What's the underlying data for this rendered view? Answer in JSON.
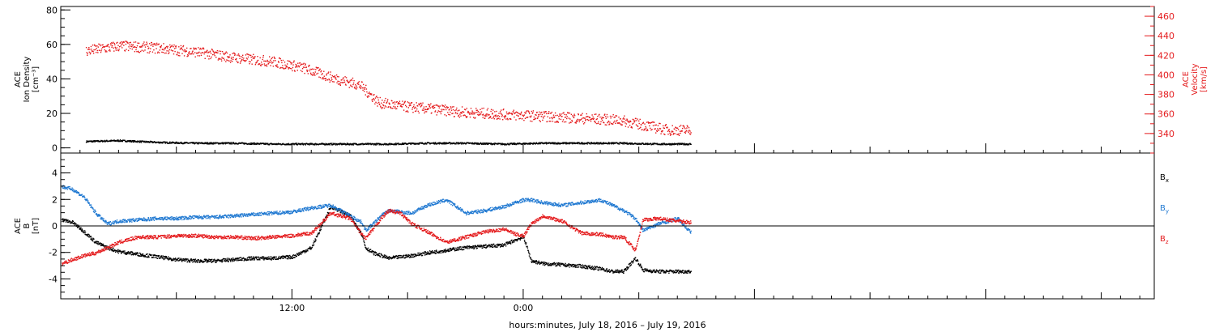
{
  "colors": {
    "frame": "#000000",
    "density": "#000000",
    "velocity": "#e41a1c",
    "bx": "#000000",
    "by": "#1f78d1",
    "bz": "#e41a1c"
  },
  "xlabel": "hours:minutes, July 18, 2016 – July 19, 2016",
  "x_ticks": [
    {
      "hour": 12,
      "label": "12:00"
    },
    {
      "hour": 24,
      "label": "0:00"
    }
  ],
  "chart_data": [
    {
      "type": "scatter",
      "panel": "top",
      "ylabel": [
        "ACE",
        "Ion Density",
        "[cm⁻³]"
      ],
      "ylim": [
        -3,
        82
      ],
      "yticks": [
        0,
        20,
        40,
        60,
        80
      ],
      "right_ylabel": [
        "ACE",
        "Velocity",
        "[km/s]"
      ],
      "right_ylim": [
        320,
        470
      ],
      "right_yticks": [
        340,
        360,
        380,
        400,
        420,
        440,
        460
      ],
      "xlim_hours": [
        0.0,
        56.75
      ],
      "grid": false,
      "series": [
        {
          "axis": "left",
          "color": "density",
          "x": [
            1.3,
            3,
            5,
            7,
            9,
            11,
            13,
            15,
            17,
            19,
            21,
            23,
            25,
            27,
            29,
            31,
            32.7
          ],
          "y": [
            4,
            4.5,
            3.5,
            3,
            3,
            2.5,
            2.5,
            2.5,
            2.5,
            3,
            3,
            2.5,
            3,
            3,
            3,
            2.5,
            2.5
          ]
        },
        {
          "axis": "right",
          "color": "velocity",
          "x": [
            1.3,
            3,
            5,
            7,
            9,
            11,
            12.5,
            14,
            15.5,
            16.5,
            17.8,
            19,
            21,
            23,
            25,
            27,
            29,
            30.5,
            31.5,
            32.7
          ],
          "y": [
            425,
            430,
            428,
            424,
            418,
            414,
            408,
            398,
            390,
            372,
            368,
            366,
            362,
            360,
            358,
            356,
            354,
            348,
            344,
            344
          ]
        }
      ]
    },
    {
      "type": "scatter",
      "panel": "bottom",
      "ylabel": [
        "ACE",
        "B",
        "[nT]"
      ],
      "ylim": [
        -5.5,
        5.5
      ],
      "yticks": [
        -4,
        -2,
        0,
        2,
        4
      ],
      "zero_line": true,
      "xlim_hours": [
        0.0,
        56.75
      ],
      "grid": false,
      "legend_position": "right",
      "legend": [
        {
          "base": "B",
          "sub": "x",
          "color": "bx"
        },
        {
          "base": "B",
          "sub": "y",
          "color": "by"
        },
        {
          "base": "B",
          "sub": "z",
          "color": "bz"
        }
      ],
      "series": [
        {
          "name": "Bx",
          "color": "bx",
          "x": [
            0.05,
            0.6,
            1.2,
            1.8,
            2.4,
            3,
            4,
            5,
            6,
            7,
            8,
            9,
            10,
            11,
            12,
            13,
            14,
            15,
            15.6,
            15.8,
            16.2,
            16.6,
            17,
            17.6,
            18.2,
            19,
            20,
            21,
            22,
            23,
            23.6,
            24,
            24.4,
            25,
            26,
            27,
            28,
            28.6,
            29.2,
            29.8,
            30.2,
            31,
            32,
            32.7
          ],
          "y": [
            0.5,
            0.3,
            -0.4,
            -1.2,
            -1.6,
            -1.9,
            -2.1,
            -2.3,
            -2.5,
            -2.6,
            -2.6,
            -2.5,
            -2.4,
            -2.4,
            -2.3,
            -1.6,
            1.5,
            0.8,
            -0.6,
            -1.6,
            -2.0,
            -2.2,
            -2.4,
            -2.3,
            -2.2,
            -2.0,
            -1.8,
            -1.6,
            -1.5,
            -1.4,
            -1.0,
            -0.8,
            -2.6,
            -2.8,
            -2.9,
            -3.0,
            -3.2,
            -3.4,
            -3.4,
            -2.4,
            -3.3,
            -3.4,
            -3.4,
            -3.4
          ]
        },
        {
          "name": "By",
          "color": "by",
          "x": [
            0.05,
            0.6,
            1.2,
            1.8,
            2.4,
            3,
            4,
            5,
            6,
            7,
            8,
            9,
            10,
            11,
            12,
            13,
            14,
            15,
            15.6,
            15.8,
            16.2,
            16.6,
            17,
            17.6,
            18.2,
            19,
            20,
            21,
            22,
            23,
            23.6,
            24,
            24.4,
            25,
            26,
            27,
            28,
            28.6,
            29.2,
            29.8,
            30.2,
            31,
            32,
            32.7
          ],
          "y": [
            3.0,
            2.8,
            2.2,
            1.0,
            0.2,
            0.4,
            0.5,
            0.6,
            0.6,
            0.7,
            0.7,
            0.8,
            0.9,
            1.0,
            1.1,
            1.4,
            1.6,
            0.8,
            0.3,
            -0.3,
            0.2,
            0.8,
            1.2,
            1.1,
            1.0,
            1.6,
            2.0,
            1.0,
            1.2,
            1.5,
            1.8,
            2.0,
            2.0,
            1.8,
            1.6,
            1.8,
            2.0,
            1.6,
            1.2,
            0.6,
            -0.3,
            0.2,
            0.6,
            -0.5
          ]
        },
        {
          "name": "Bz",
          "color": "bz",
          "x": [
            0.05,
            0.6,
            1.2,
            1.8,
            2.4,
            3,
            4,
            5,
            6,
            7,
            8,
            9,
            10,
            11,
            12,
            13,
            14,
            15,
            15.6,
            15.8,
            16.2,
            16.6,
            17,
            17.6,
            18.2,
            19,
            20,
            21,
            22,
            23,
            23.6,
            24,
            24.4,
            25,
            26,
            27,
            28,
            28.6,
            29.2,
            29.8,
            30.2,
            31,
            32,
            32.7
          ],
          "y": [
            -2.8,
            -2.5,
            -2.2,
            -2.0,
            -1.6,
            -1.2,
            -0.8,
            -0.8,
            -0.7,
            -0.7,
            -0.8,
            -0.8,
            -0.9,
            -0.8,
            -0.7,
            -0.5,
            1.0,
            0.6,
            -0.6,
            -0.9,
            -0.2,
            0.6,
            1.2,
            1.0,
            0.2,
            -0.4,
            -1.2,
            -0.8,
            -0.4,
            -0.2,
            -0.6,
            -0.7,
            0.2,
            0.8,
            0.4,
            -0.5,
            -0.6,
            -0.8,
            -0.8,
            -1.8,
            0.5,
            0.6,
            0.4,
            0.3
          ]
        }
      ]
    }
  ]
}
